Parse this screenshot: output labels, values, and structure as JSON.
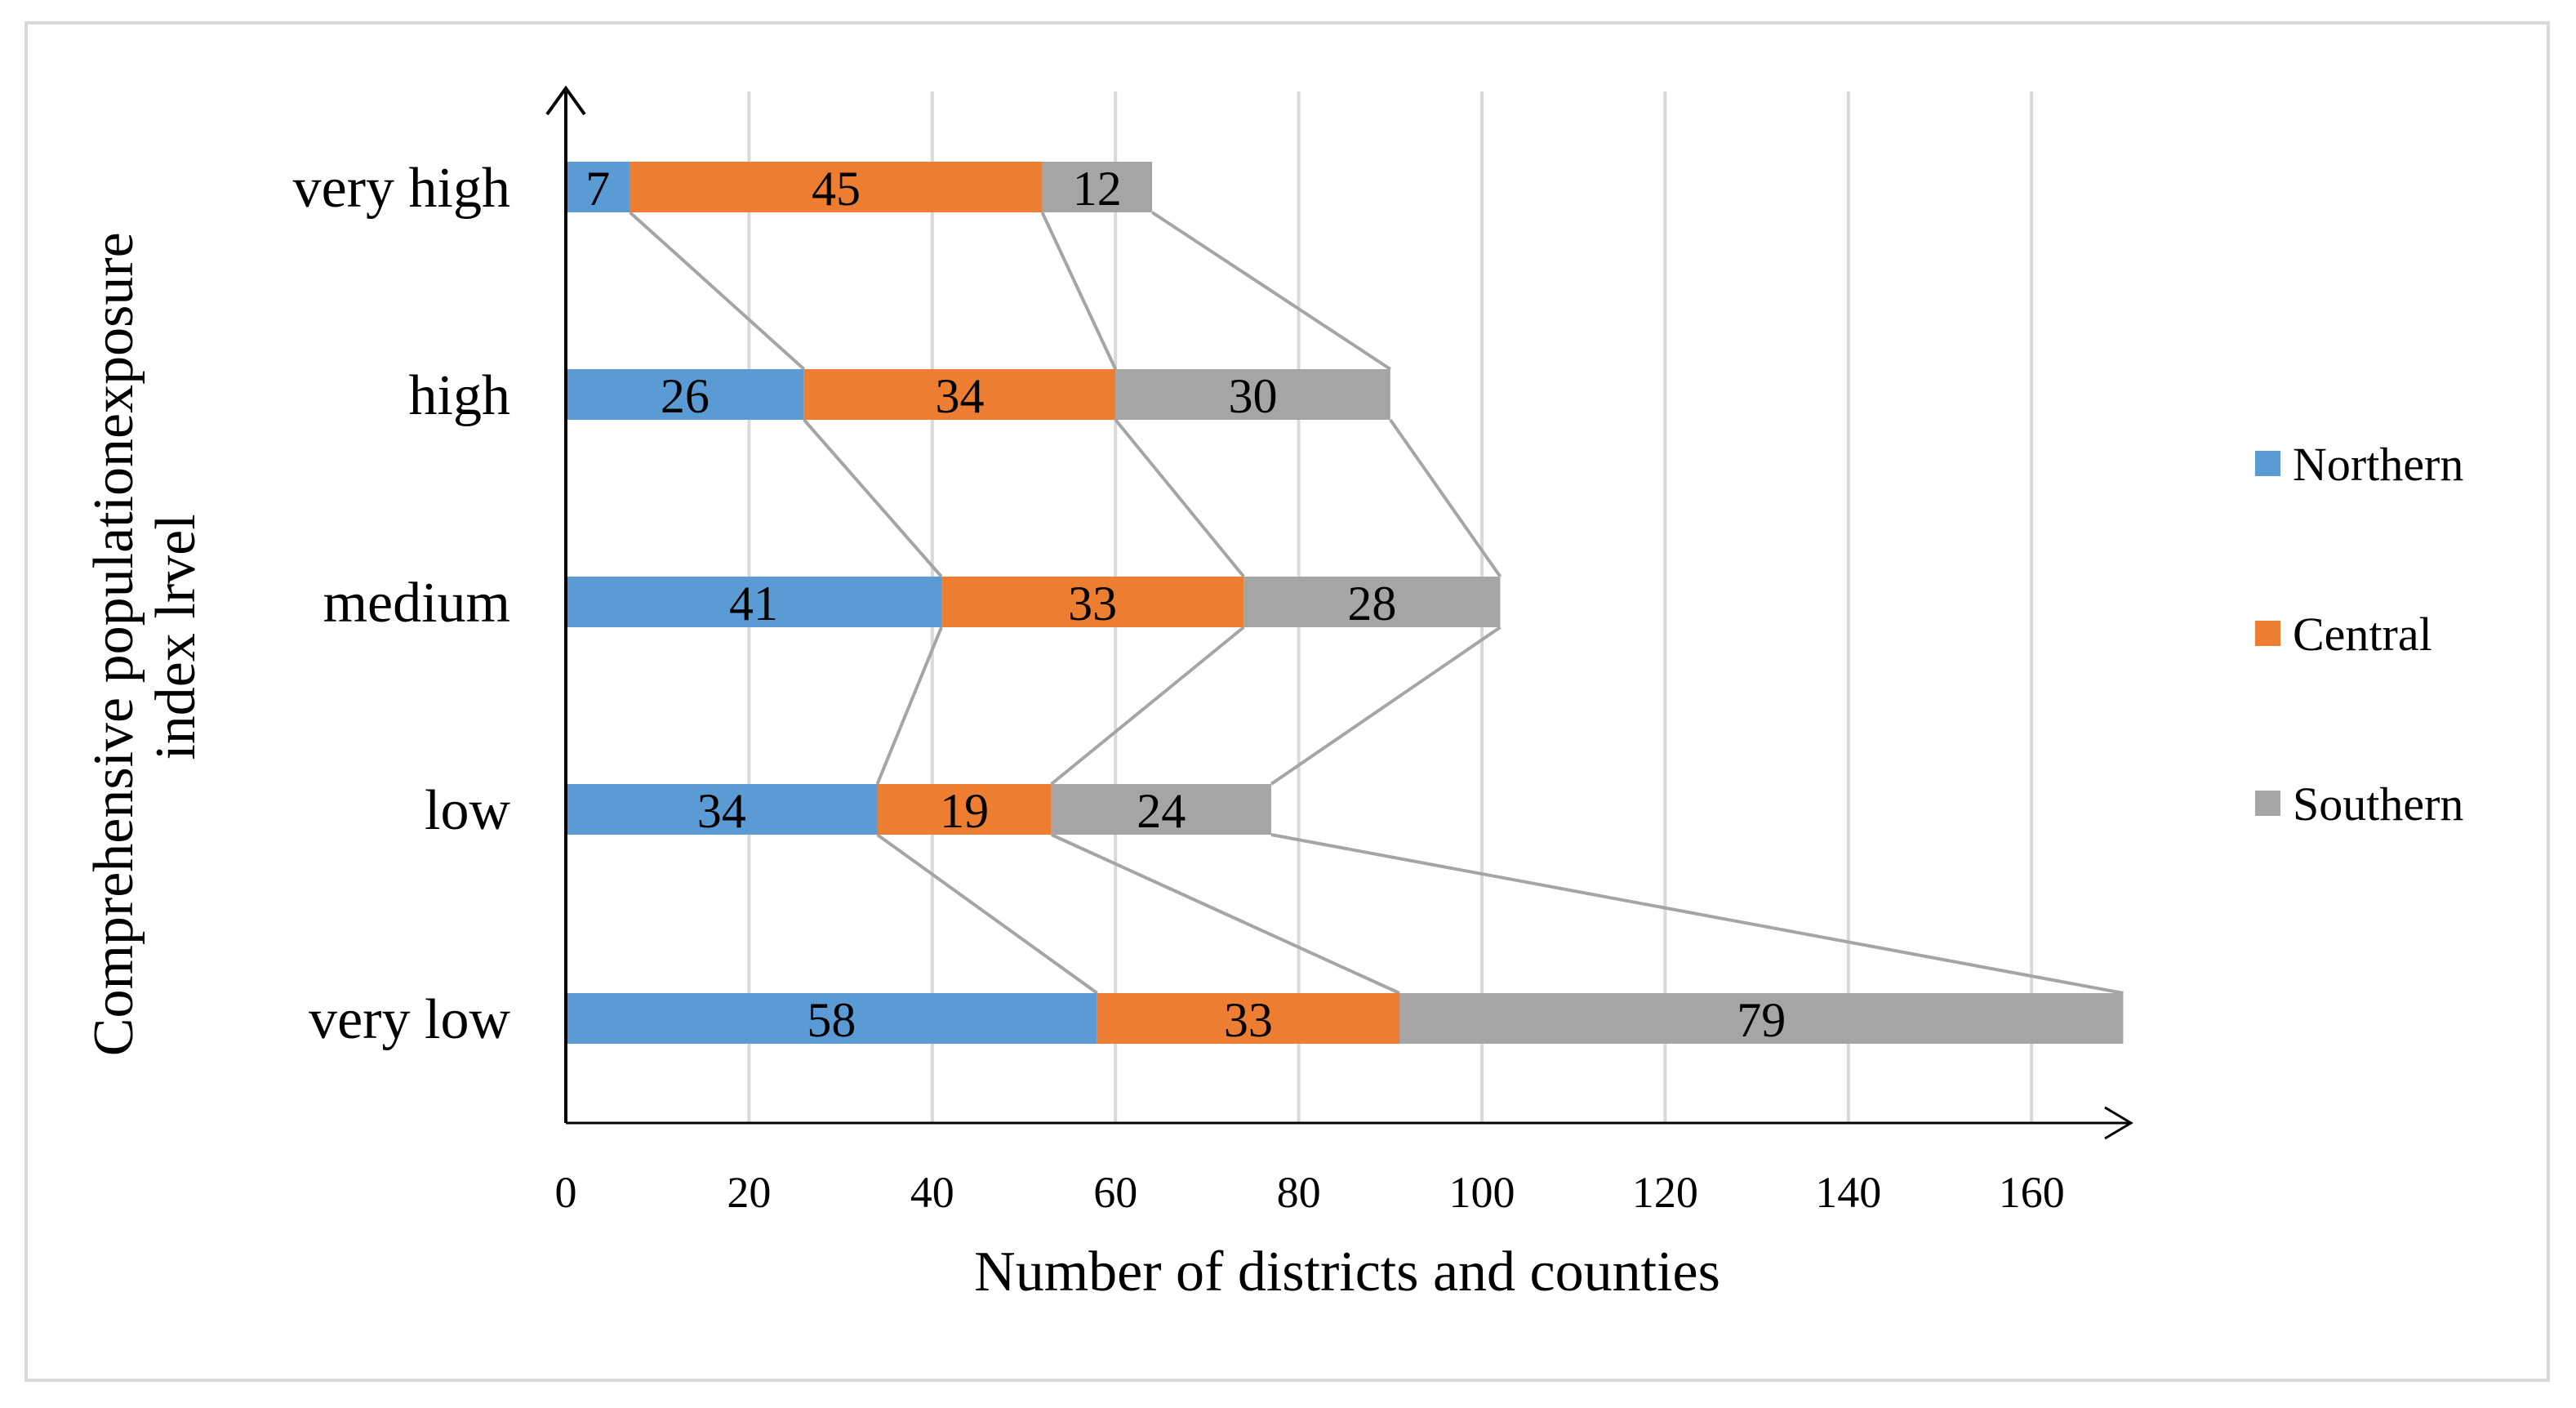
{
  "chart_data": {
    "type": "bar",
    "orientation": "horizontal",
    "stacked": true,
    "categories": [
      "very high",
      "high",
      "medium",
      "low",
      "very low"
    ],
    "series": [
      {
        "name": "Northern",
        "color": "#5b9bd5",
        "values": [
          7,
          26,
          41,
          34,
          58
        ]
      },
      {
        "name": "Central",
        "color": "#ed7d31",
        "values": [
          45,
          34,
          33,
          19,
          33
        ]
      },
      {
        "name": "Southern",
        "color": "#a5a5a5",
        "values": [
          12,
          30,
          28,
          24,
          79
        ]
      }
    ],
    "xlabel": "Number of districts and counties",
    "ylabel_lines": [
      "Comprehensive populationexposure",
      "index lrvel"
    ],
    "xlim": [
      0,
      170
    ],
    "xticks": [
      0,
      20,
      40,
      60,
      80,
      100,
      120,
      140,
      160
    ],
    "grid": true,
    "legend_position": "right",
    "series_connector_lines": true
  }
}
